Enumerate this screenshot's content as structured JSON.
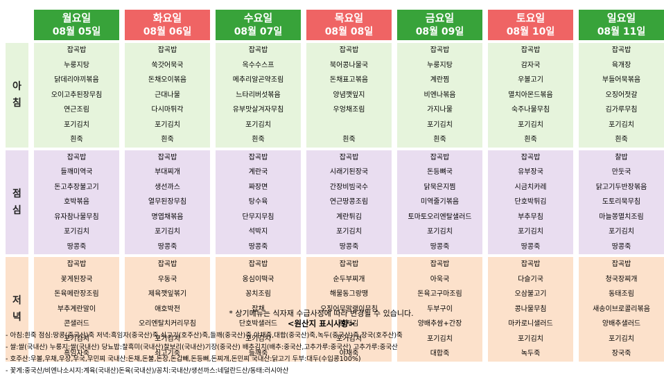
{
  "days": [
    {
      "day": "월요일",
      "date": "08월  05일",
      "holiday": false
    },
    {
      "day": "화요일",
      "date": "08월  06일",
      "holiday": true
    },
    {
      "day": "수요일",
      "date": "08월  07일",
      "holiday": false
    },
    {
      "day": "목요일",
      "date": "08월  08일",
      "holiday": true
    },
    {
      "day": "금요일",
      "date": "08월  09일",
      "holiday": false
    },
    {
      "day": "토요일",
      "date": "08월  10일",
      "holiday": true
    },
    {
      "day": "일요일",
      "date": "08월  11일",
      "holiday": false
    }
  ],
  "colors": {
    "weekday_header": "#38a33a",
    "holiday_header": "#ef6464",
    "breakfast_bg": "#e6f4dc",
    "lunch_bg": "#e9ddf0",
    "dinner_bg": "#fce1cb"
  },
  "meals": [
    {
      "label": [
        "아",
        "침"
      ],
      "key": "breakfast",
      "days": [
        [
          "잡곡밥",
          "누룽지탕",
          "닭데리야끼볶음",
          "오이고추된장무침",
          "연근조림",
          "포기김치",
          "흰죽"
        ],
        [
          "잡곡밥",
          "쑥갓어묵국",
          "돈채오이볶음",
          "근대나물",
          "다시마튀각",
          "포기김치",
          "흰죽"
        ],
        [
          "잡곡밥",
          "옥수수스프",
          "메추리알곤약조림",
          "느타리버섯볶음",
          "유부맛살겨자무침",
          "포기김치",
          "흰죽"
        ],
        [
          "잡곡밥",
          "북어콩나물국",
          "돈채표고볶음",
          "양념깻잎지",
          "우엉채조림",
          "",
          "흰죽"
        ],
        [
          "잡곡밥",
          "누룽지탕",
          "계란찜",
          "비엔나볶음",
          "가지나물",
          "포기김치",
          "흰죽"
        ],
        [
          "잡곡밥",
          "감자국",
          "우볼고기",
          "멸치아몬드볶음",
          "숙주나물무침",
          "포기김치",
          "흰죽"
        ],
        [
          "잡곡밥",
          "육개장",
          "부들어묵볶음",
          "오징어젓갈",
          "김가루무침",
          "포기김치",
          "흰죽"
        ]
      ]
    },
    {
      "label": [
        "점",
        "심"
      ],
      "key": "lunch",
      "days": [
        [
          "잡곡밥",
          "들깨미역국",
          "돈고추장불고기",
          "호박볶음",
          "유자참나물무침",
          "포기김치",
          "땅콩죽"
        ],
        [
          "잡곡밥",
          "부대찌개",
          "생선까스",
          "열무된장무침",
          "명엽채볶음",
          "포기김치",
          "땅콩죽"
        ],
        [
          "잡곡밥",
          "계란국",
          "짜장면",
          "탕수육",
          "단무지무침",
          "석박지",
          "땅콩죽"
        ],
        [
          "잡곡밥",
          "시래기된장국",
          "간장비빔국수",
          "연근땅콩조림",
          "계란튀김",
          "포기김치",
          "땅콩죽"
        ],
        [
          "잡곡밥",
          "돈등뼈국",
          "닭묵은지찜",
          "미역줄기볶음",
          "토마토오리엔탈샐러드",
          "포기김치",
          "땅콩죽"
        ],
        [
          "잡곡밥",
          "유부장국",
          "시금치카레",
          "단호박튀김",
          "부추무침",
          "포기김치",
          "땅콩죽"
        ],
        [
          "찰밥",
          "만둣국",
          "닭고기두반장볶음",
          "도토리묵무침",
          "마늘쫑멸치조림",
          "포기김치",
          "땅콩죽"
        ]
      ]
    },
    {
      "label": [
        "저",
        "녁"
      ],
      "key": "dinner",
      "days": [
        [
          "잡곡밥",
          "꽃게된장국",
          "돈육메란장조림",
          "부추계란말이",
          "콘샐러드",
          "포기김치",
          "흑임자죽"
        ],
        [
          "잡곡밥",
          "우동국",
          "제육깻잎볶기",
          "애호박전",
          "오리엔탈치커리무침",
          "포기김치",
          "쇠고기죽"
        ],
        [
          "잡곡밥",
          "옹심이떡국",
          "꽁치조림",
          "잡채",
          "단호박샐러드",
          "포기김치",
          "들깨죽"
        ],
        [
          "잡곡밥",
          "순두부찌개",
          "해물동그랑땡",
          "오징어무말랭이무침",
          "봉지김",
          "포기김치",
          "야채죽"
        ],
        [
          "잡곡밥",
          "아욱국",
          "돈육고구마조림",
          "두부구이",
          "양배추쌈+간장",
          "포기김치",
          "대합죽"
        ],
        [
          "잡곡밥",
          "다슬기국",
          "오삼불고기",
          "콩나물무침",
          "마카로니샐러드",
          "포기김치",
          "녹두죽"
        ],
        [
          "잡곡밥",
          "청국장찌개",
          "동태조림",
          "새송이브로콜리볶음",
          "양배추샐러드",
          "포기김치",
          "장국죽"
        ]
      ]
    }
  ],
  "notice": "*  상기메뉴는  식자재  수급사정에  따라  변경될  수  있습니다.",
  "origin_title": "<원산지  표시사항>",
  "origin_lines": [
    "-  아침:흰죽   점심:땅콩(중국산)죽   저녁:흑임자(중국산)죽,쇠고기(호주산)죽,들깨(중국산)죽,야채죽,대합(중국산)죽,녹두(중국산)죽,장국(호주산)죽",
    "-  쌀:쌀(국내산)   누룽지:쌀(국내산)   당뇨밥:찰흑미(국내산)찰보리(국내산)기장(중국산)   배추김치(배추:중국산,고추가루:중국산)   고추가루:중국산",
    "-  호주산:우볼,우채,우장,우국,우민찌     국내산:돈채,돈불,돈장,돈갑빼,돈등뼈,돈찌개,돈민찌     국내산:닭고기     두부:대두(수입콩100%)",
    "-  꽃게:중국산/비엔나소시지:계육(국내산)돈육(국내산)/꽁치:국내산/생선까스:네덜란드산/동태:러시아산"
  ]
}
